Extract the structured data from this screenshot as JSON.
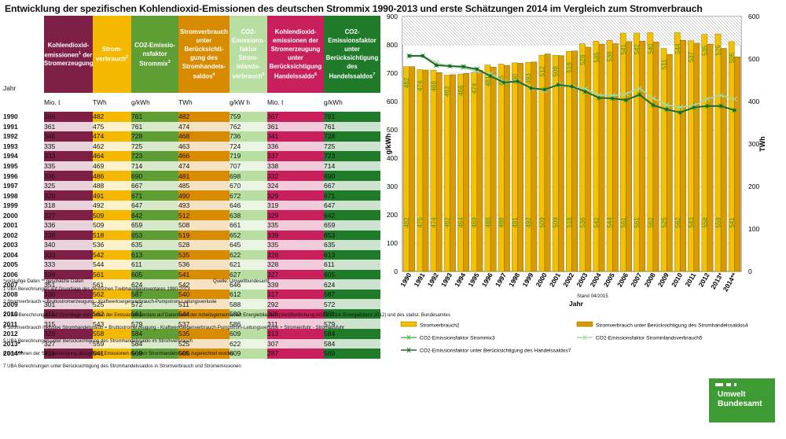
{
  "title": "Entwicklung der spezifischen Kohlendioxid-Emissionen des deutschen Strommix 1990-2013 und erste Schätzungen 2014 im Vergleich zum Stromverbrauch",
  "table": {
    "year_label": "Jahr",
    "headers": [
      {
        "text": "Kohlendioxid-emissionen",
        "sup": "1",
        "text2": " der Stromerzeugung",
        "unit": "Mio. t"
      },
      {
        "text": "Strom-verbrauch",
        "sup": "2",
        "text2": "",
        "unit": "TWh"
      },
      {
        "text": "CO2-Emissio-nsfaktor Strommix",
        "sup": "3",
        "text2": "",
        "unit": "g/kWh"
      },
      {
        "text": "Stromverbrauch unter Berücksichti-gung des Stromhandels-saldos",
        "sup": "4",
        "text2": "",
        "unit": "TWh"
      },
      {
        "text": "CO2-Emissions-faktor Strom-inlands-verbrauch",
        "sup": "5",
        "text2": "",
        "unit": "g/kW h"
      },
      {
        "text": "Kohlendioxid-emissionen der Stromerzeugung unter Berücksichtigung Handelssaldo",
        "sup": "6",
        "text2": "",
        "unit": "Mio. t"
      },
      {
        "text": "CO2-Emissionsfaktor unter Berücksichtigung des Handelssaldos",
        "sup": "7",
        "text2": "",
        "unit": "g/kWh"
      }
    ],
    "rows": [
      {
        "year": "1990",
        "v": [
          "366",
          "482",
          "761",
          "482",
          "759",
          "367",
          "761"
        ]
      },
      {
        "year": "1991",
        "v": [
          "361",
          "475",
          "761",
          "474",
          "762",
          "361",
          "761"
        ]
      },
      {
        "year": "1992",
        "v": [
          "346",
          "474",
          "728",
          "468",
          "736",
          "341",
          "728"
        ]
      },
      {
        "year": "1993",
        "v": [
          "335",
          "462",
          "725",
          "463",
          "724",
          "336",
          "725"
        ]
      },
      {
        "year": "1994",
        "v": [
          "333",
          "464",
          "723",
          "466",
          "719",
          "337",
          "723"
        ]
      },
      {
        "year": "1995",
        "v": [
          "335",
          "469",
          "714",
          "474",
          "707",
          "338",
          "714"
        ]
      },
      {
        "year": "1996",
        "v": [
          "336",
          "486",
          "690",
          "481",
          "698",
          "332",
          "690"
        ]
      },
      {
        "year": "1997",
        "v": [
          "325",
          "488",
          "667",
          "485",
          "670",
          "324",
          "667"
        ]
      },
      {
        "year": "1998",
        "v": [
          "329",
          "491",
          "671",
          "490",
          "672",
          "329",
          "671"
        ]
      },
      {
        "year": "1999",
        "v": [
          "318",
          "492",
          "647",
          "493",
          "646",
          "319",
          "647"
        ]
      },
      {
        "year": "2000",
        "v": [
          "327",
          "509",
          "642",
          "512",
          "638",
          "329",
          "642"
        ]
      },
      {
        "year": "2001",
        "v": [
          "336",
          "509",
          "659",
          "508",
          "661",
          "335",
          "659"
        ]
      },
      {
        "year": "2002",
        "v": [
          "338",
          "518",
          "653",
          "519",
          "652",
          "339",
          "653"
        ]
      },
      {
        "year": "2003",
        "v": [
          "340",
          "536",
          "635",
          "528",
          "645",
          "335",
          "635"
        ]
      },
      {
        "year": "2004",
        "v": [
          "333",
          "542",
          "613",
          "535",
          "622",
          "328",
          "613"
        ]
      },
      {
        "year": "2005",
        "v": [
          "333",
          "544",
          "611",
          "536",
          "621",
          "328",
          "611"
        ]
      },
      {
        "year": "2006",
        "v": [
          "338",
          "561",
          "605",
          "541",
          "627",
          "327",
          "605"
        ]
      },
      {
        "year": "2007",
        "v": [
          "351",
          "561",
          "624",
          "542",
          "646",
          "339",
          "624"
        ]
      },
      {
        "year": "2008",
        "v": [
          "330",
          "562",
          "587",
          "540",
          "612",
          "317",
          "587"
        ]
      },
      {
        "year": "2009",
        "v": [
          "301",
          "525",
          "572",
          "511",
          "588",
          "292",
          "572"
        ]
      },
      {
        "year": "2010",
        "v": [
          "315",
          "562",
          "561",
          "544",
          "580",
          "306",
          "561"
        ]
      },
      {
        "year": "2011",
        "v": [
          "315",
          "543",
          "579",
          "537",
          "586",
          "311",
          "579"
        ]
      },
      {
        "year": "2012",
        "v": [
          "326",
          "558",
          "584",
          "535",
          "609",
          "313",
          "584"
        ]
      },
      {
        "year": "2013*",
        "v": [
          "327",
          "559",
          "584",
          "525",
          "622",
          "307",
          "584"
        ]
      },
      {
        "year": "2014**",
        "v": [
          "311",
          "541",
          "569",
          "505",
          "609",
          "287",
          "569"
        ]
      }
    ]
  },
  "notes": {
    "prelim": "*vorläufige Daten ** geschätzte Daten",
    "source": "Quelle: Umweltbundesamt",
    "stand": "Stand 04/2015",
    "footnotes": [
      "1 UBA Berechnungen auf Grundlage des deutschen Treibhausgasinventares 1990-2013",
      "2 Stromverbrauch = Bruttostromerzeugung - Kraftwerkseigenverbrauch-Pumpstrom-Leitungsverluste",
      "3 UBA-Berechnungen auf Grundlage von Daten der Emissionsinventare auf Datenbasis der Arbeitsgemeinschaft Energiebilanzen (Veröffentlichung AGEB 2014 /Energiebilanz 2012) und des statist. Bundesamtes",
      "4 Stromverbrauch inklusive Stromhandelssaldo = Bruttostromerzeugung - Kraftwerkseigenverbrauch-Pumpstrom-Leitungsverluste + Stromeinfuhr - Stromausfuhr",
      "5 UBA Berechnungen unter Berücksichtigung des Stromhandelssaldo im Stromverbrauch",
      "6 Emissionen der Stromerzeugung abzüglicher Emissionen die dem Stromhandelssaldo zugerechnet wurden",
      "7 UBA Berechnungen unter Berücksichtigung des Stromhandelssaldos in Stromverbrauch und Stromemissionen"
    ]
  },
  "logo": {
    "line1": "Umwelt",
    "line2": "Bundesamt"
  },
  "chart_data": {
    "type": "bar+line",
    "categories": [
      "1990",
      "1991",
      "1992",
      "1993",
      "1994",
      "1995",
      "1996",
      "1997",
      "1998",
      "1999",
      "2000",
      "2001",
      "2002",
      "2003",
      "2004",
      "2005",
      "2006",
      "2007",
      "2008",
      "2009",
      "2010",
      "2011",
      "2012",
      "2013*",
      "2014**"
    ],
    "xlabel": "Jahr",
    "ylabel_left": "g/kWh",
    "ylabel_right": "TWh",
    "ylim_left": [
      0,
      900
    ],
    "ylim_right": [
      0,
      600
    ],
    "yticks_left": [
      "0",
      "100",
      "200",
      "300",
      "400",
      "500",
      "600",
      "700",
      "800",
      "900"
    ],
    "yticks_right": [
      "0",
      "100",
      "200",
      "300",
      "400",
      "500",
      "600"
    ],
    "series": [
      {
        "name": "Stromverbrauch2",
        "kind": "bar",
        "axis": "right",
        "color": "#f2c200",
        "values": [
          482,
          475,
          474,
          462,
          464,
          469,
          486,
          488,
          491,
          492,
          509,
          509,
          518,
          536,
          542,
          544,
          561,
          561,
          562,
          525,
          562,
          543,
          558,
          559,
          541
        ]
      },
      {
        "name": "Stromverbrauch unter Berücksichtigung des  Stromhandelssaldos4",
        "kind": "bar",
        "axis": "right",
        "color": "#d79a00",
        "values": [
          482,
          474,
          468,
          463,
          466,
          474,
          481,
          485,
          490,
          493,
          512,
          508,
          519,
          528,
          535,
          536,
          541,
          542,
          540,
          511,
          544,
          537,
          535,
          525,
          505
        ]
      },
      {
        "name": "CO2-Emissionsfaktor Strommix3",
        "kind": "line",
        "axis": "left",
        "color": "#55b84a",
        "values": [
          761,
          761,
          728,
          725,
          723,
          714,
          690,
          667,
          671,
          647,
          642,
          659,
          653,
          635,
          613,
          611,
          605,
          624,
          587,
          572,
          561,
          579,
          584,
          584,
          569
        ]
      },
      {
        "name": "CO2-Emissionsfaktor Strominlandsverbrauch5",
        "kind": "line",
        "axis": "left",
        "color": "#a8d8a0",
        "values": [
          759,
          762,
          736,
          724,
          719,
          707,
          698,
          670,
          672,
          646,
          638,
          661,
          652,
          645,
          622,
          621,
          627,
          646,
          612,
          588,
          580,
          586,
          609,
          622,
          609
        ]
      },
      {
        "name": "CO2-Emissionsfaktor unter Berücksichtigung des Handelssaldos7",
        "kind": "line",
        "axis": "left",
        "color": "#1f6b2a",
        "values": [
          761,
          761,
          728,
          725,
          723,
          714,
          690,
          667,
          671,
          647,
          642,
          659,
          653,
          635,
          613,
          611,
          605,
          624,
          587,
          572,
          561,
          579,
          584,
          584,
          569
        ]
      }
    ]
  }
}
